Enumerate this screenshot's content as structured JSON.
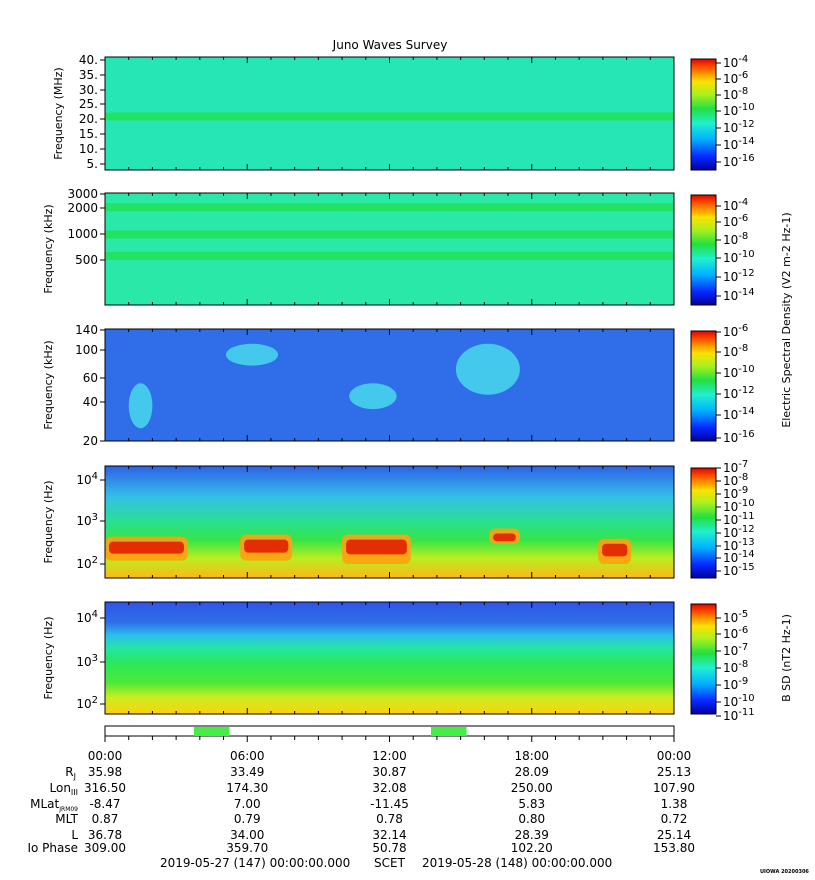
{
  "title": "Juno Waves Survey",
  "footer": {
    "start_label": "2019-05-27 (147) 00:00:00.000",
    "scet_label": "SCET",
    "end_label": "2019-05-28 (148) 00:00:00.000",
    "credit": "UIOWA 20200306"
  },
  "colors": {
    "panel_green": "#25e68c",
    "low_blue": "#2f6ee8",
    "bar_green": "#44ee44"
  },
  "chart_data": [
    {
      "type": "heatmap",
      "ylabel": "Frequency (MHz)",
      "yticks": [
        "40.",
        "35.",
        "30.",
        "25.",
        "20.",
        "15.",
        "10.",
        "5."
      ],
      "cbar_ticks": [
        "10-4",
        "10-6",
        "10-8",
        "10-10",
        "10-12",
        "10-14",
        "10-16"
      ],
      "cbar_label": "",
      "features": [
        {
          "kind": "band",
          "center": 21,
          "unit": "MHz"
        }
      ]
    },
    {
      "type": "heatmap",
      "ylabel": "Frequency (kHz)",
      "yticks": [
        "3000",
        "2000",
        "1000",
        "500"
      ],
      "cbar_ticks": [
        "10-4",
        "10-6",
        "10-8",
        "10-10",
        "10-12",
        "10-14"
      ],
      "cbar_label": "Electric Spectral Density (V2 m-2 Hz-1)",
      "features": [
        {
          "kind": "band",
          "center": 2100,
          "unit": "kHz"
        },
        {
          "kind": "band",
          "center": 1000,
          "unit": "kHz"
        },
        {
          "kind": "band",
          "center": 560,
          "unit": "kHz"
        }
      ]
    },
    {
      "type": "heatmap",
      "ylabel": "Frequency (kHz)",
      "yticks": [
        "140",
        "100",
        "60",
        "40",
        "20"
      ],
      "cbar_ticks": [
        "10-6",
        "10-8",
        "10-10",
        "10-12",
        "10-14",
        "10-16"
      ],
      "cbar_label": "",
      "features": [
        {
          "kind": "patch",
          "t_hours": [
            1.0,
            2.0
          ],
          "freq_kHz": [
            25,
            55
          ]
        },
        {
          "kind": "patch",
          "t_hours": [
            5.1,
            7.3
          ],
          "freq_kHz": [
            75,
            110
          ]
        },
        {
          "kind": "patch",
          "t_hours": [
            10.3,
            12.3
          ],
          "freq_kHz": [
            35,
            55
          ]
        },
        {
          "kind": "patch",
          "t_hours": [
            14.8,
            17.5
          ],
          "freq_kHz": [
            45,
            110
          ]
        }
      ]
    },
    {
      "type": "heatmap",
      "ylabel": "Frequency (Hz)",
      "yticks": [
        "10^4",
        "10^3",
        "10^2"
      ],
      "cbar_ticks": [
        "10-7",
        "10-8",
        "10-9",
        "10-10",
        "10-11",
        "10-12",
        "10-13",
        "10-14",
        "10-15"
      ],
      "cbar_label": "",
      "features": [
        {
          "kind": "intense",
          "t_hours": [
            0.0,
            3.5
          ],
          "freq_Hz": [
            120,
            450
          ]
        },
        {
          "kind": "intense",
          "t_hours": [
            5.7,
            7.9
          ],
          "freq_Hz": [
            120,
            500
          ]
        },
        {
          "kind": "intense",
          "t_hours": [
            10.0,
            12.9
          ],
          "freq_Hz": [
            100,
            500
          ]
        },
        {
          "kind": "intense",
          "t_hours": [
            16.2,
            17.5
          ],
          "freq_Hz": [
            300,
            700
          ]
        },
        {
          "kind": "intense",
          "t_hours": [
            20.8,
            22.2
          ],
          "freq_Hz": [
            100,
            400
          ]
        }
      ]
    },
    {
      "type": "heatmap",
      "ylabel": "Frequency (Hz)",
      "yticks": [
        "10^4",
        "10^3",
        "10^2"
      ],
      "cbar_ticks": [
        "10-5",
        "10-6",
        "10-7",
        "10-8",
        "10-9",
        "10-10",
        "10-11"
      ],
      "cbar_label": "B SD (nT2 Hz-1)",
      "features": [
        {
          "kind": "gradient",
          "freq_Hz": [
            50,
            20000
          ]
        }
      ]
    }
  ],
  "time_axis": {
    "tick_labels": [
      "00:00",
      "06:00",
      "12:00",
      "18:00",
      "00:00"
    ],
    "tick_hours": [
      0,
      6,
      12,
      18,
      24
    ],
    "range_hours": [
      0,
      24
    ]
  },
  "bar_segments_hours": [
    [
      3.75,
      5.25
    ],
    [
      13.75,
      15.25
    ]
  ],
  "ephemeris": {
    "rows": [
      {
        "label": "Rj",
        "values": [
          "35.98",
          "33.49",
          "30.87",
          "28.09",
          "25.13"
        ]
      },
      {
        "label": "LonIII",
        "values": [
          "316.50",
          "174.30",
          "32.08",
          "250.00",
          "107.90"
        ]
      },
      {
        "label": "MLatJRM09",
        "values": [
          "-8.47",
          "7.00",
          "-11.45",
          "5.83",
          "1.38"
        ]
      },
      {
        "label": "MLT",
        "values": [
          "0.87",
          "0.79",
          "0.78",
          "0.80",
          "0.72"
        ]
      },
      {
        "label": "L",
        "values": [
          "36.78",
          "34.00",
          "32.14",
          "28.39",
          "25.14"
        ]
      },
      {
        "label": "Io Phase",
        "values": [
          "309.00",
          "359.70",
          "50.78",
          "102.20",
          "153.80"
        ]
      }
    ]
  }
}
